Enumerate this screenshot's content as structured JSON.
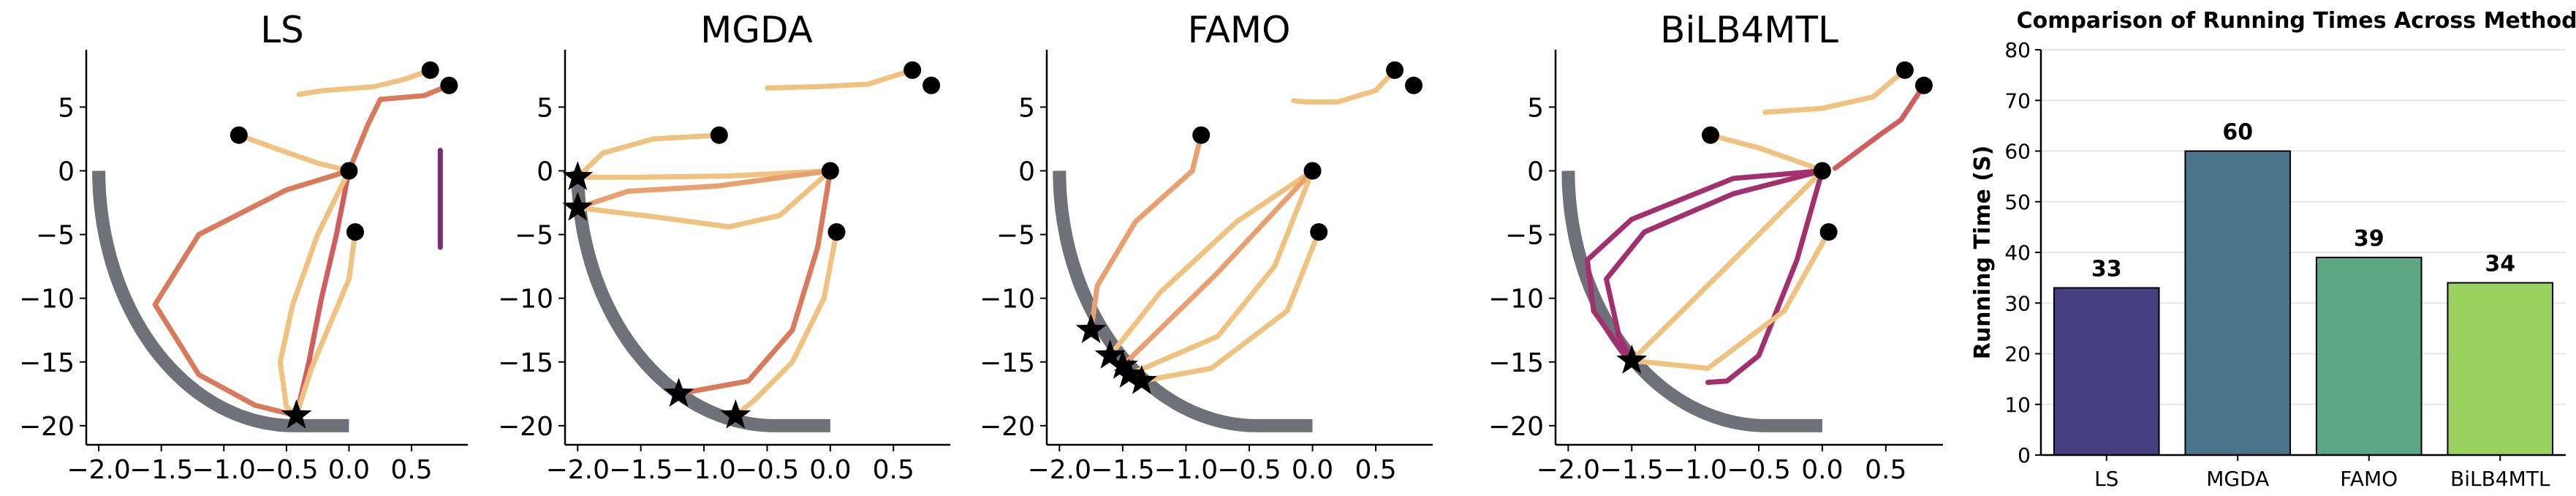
{
  "chart_data": [
    {
      "type": "line",
      "title": "LS",
      "xlim": [
        -2.1,
        0.95
      ],
      "ylim": [
        -21.5,
        9.5
      ],
      "xticks": [
        -2.0,
        -1.5,
        -1.0,
        -0.5,
        0.0,
        0.5
      ],
      "xtick_labels": [
        "−2.0",
        "−1.5",
        "−1.0",
        "−0.5",
        "0.0",
        "0.5"
      ],
      "yticks": [
        5,
        0,
        -5,
        -10,
        -15,
        -20
      ],
      "ytick_labels": [
        "5",
        "0",
        "−5",
        "−10",
        "−15",
        "−20"
      ],
      "start_points": [
        [
          0.65,
          7.9
        ],
        [
          0.8,
          6.7
        ],
        [
          -0.88,
          2.8
        ],
        [
          0.0,
          0.0
        ],
        [
          0.05,
          -4.8
        ]
      ],
      "end_points": [
        [
          -0.42,
          -19.2
        ]
      ],
      "series": [
        {
          "color": "#f0c27f",
          "points": [
            [
              0.65,
              7.9
            ],
            [
              0.45,
              7.2
            ],
            [
              0.2,
              6.6
            ],
            [
              -0.2,
              6.3
            ],
            [
              -0.4,
              6.0
            ]
          ]
        },
        {
          "color": "#d97a5c",
          "points": [
            [
              0.8,
              6.7
            ],
            [
              0.6,
              5.9
            ],
            [
              0.25,
              5.6
            ],
            [
              0.15,
              3.6
            ],
            [
              0.0,
              0.0
            ]
          ]
        },
        {
          "color": "#f0c27f",
          "points": [
            [
              -0.88,
              2.8
            ],
            [
              -0.6,
              1.8
            ],
            [
              -0.25,
              0.6
            ],
            [
              0.0,
              0.0
            ]
          ]
        },
        {
          "color": "#d97a5c",
          "points": [
            [
              0.0,
              0.0
            ],
            [
              -0.5,
              -1.5
            ],
            [
              -1.2,
              -5.0
            ],
            [
              -1.55,
              -10.5
            ],
            [
              -1.2,
              -16.0
            ],
            [
              -0.75,
              -18.4
            ],
            [
              -0.42,
              -19.2
            ]
          ]
        },
        {
          "color": "#d05e5e",
          "points": [
            [
              0.0,
              0.0
            ],
            [
              -0.1,
              -5.0
            ],
            [
              -0.22,
              -10.0
            ],
            [
              -0.32,
              -15.0
            ],
            [
              -0.42,
              -19.2
            ]
          ]
        },
        {
          "color": "#f0c27f",
          "points": [
            [
              0.0,
              0.0
            ],
            [
              -0.25,
              -5.0
            ],
            [
              -0.45,
              -10.5
            ],
            [
              -0.55,
              -15.0
            ],
            [
              -0.5,
              -18.5
            ],
            [
              -0.42,
              -19.2
            ]
          ]
        },
        {
          "color": "#f0c27f",
          "points": [
            [
              0.05,
              -4.8
            ],
            [
              0.0,
              -8.5
            ],
            [
              -0.15,
              -12.0
            ],
            [
              -0.3,
              -15.5
            ],
            [
              -0.42,
              -19.2
            ]
          ]
        },
        {
          "color": "#7b2e6e",
          "points": [
            [
              0.73,
              1.6
            ],
            [
              0.73,
              -2.0
            ],
            [
              0.73,
              -6.0
            ]
          ]
        }
      ]
    },
    {
      "type": "line",
      "title": "MGDA",
      "xlim": [
        -2.1,
        0.95
      ],
      "ylim": [
        -21.5,
        9.5
      ],
      "xticks": [
        -2.0,
        -1.5,
        -1.0,
        -0.5,
        0.0,
        0.5
      ],
      "xtick_labels": [
        "−2.0",
        "−1.5",
        "−1.0",
        "−0.5",
        "0.0",
        "0.5"
      ],
      "yticks": [
        5,
        0,
        -5,
        -10,
        -15,
        -20
      ],
      "ytick_labels": [
        "5",
        "0",
        "−5",
        "−10",
        "−15",
        "−20"
      ],
      "start_points": [
        [
          0.65,
          7.9
        ],
        [
          0.8,
          6.7
        ],
        [
          -0.88,
          2.8
        ],
        [
          0.0,
          0.0
        ],
        [
          0.05,
          -4.8
        ]
      ],
      "end_points": [
        [
          -2.0,
          -0.5
        ],
        [
          -2.0,
          -2.9
        ],
        [
          -1.2,
          -17.5
        ],
        [
          -0.75,
          -19.2
        ]
      ],
      "series": [
        {
          "color": "#f0c27f",
          "points": [
            [
              0.65,
              7.9
            ],
            [
              0.3,
              6.8
            ],
            [
              -0.1,
              6.6
            ],
            [
              -0.5,
              6.5
            ]
          ]
        },
        {
          "color": "#f0c27f",
          "points": [
            [
              -0.88,
              2.8
            ],
            [
              -1.4,
              2.5
            ],
            [
              -1.8,
              1.4
            ],
            [
              -2.0,
              -0.5
            ]
          ]
        },
        {
          "color": "#f0c27f",
          "points": [
            [
              0.0,
              0.0
            ],
            [
              -0.8,
              -0.4
            ],
            [
              -1.5,
              -0.5
            ],
            [
              -2.0,
              -0.5
            ]
          ]
        },
        {
          "color": "#e8a070",
          "points": [
            [
              0.0,
              0.0
            ],
            [
              -0.9,
              -1.2
            ],
            [
              -1.6,
              -1.6
            ],
            [
              -2.0,
              -2.9
            ]
          ]
        },
        {
          "color": "#f0c27f",
          "points": [
            [
              0.0,
              0.0
            ],
            [
              -0.4,
              -3.5
            ],
            [
              -0.8,
              -4.4
            ],
            [
              -1.4,
              -3.6
            ],
            [
              -2.0,
              -2.9
            ]
          ]
        },
        {
          "color": "#d97a5c",
          "points": [
            [
              0.0,
              0.0
            ],
            [
              -0.1,
              -6.0
            ],
            [
              -0.3,
              -12.5
            ],
            [
              -0.65,
              -16.5
            ],
            [
              -1.2,
              -17.5
            ]
          ]
        },
        {
          "color": "#f0c27f",
          "points": [
            [
              0.05,
              -4.8
            ],
            [
              -0.05,
              -10.0
            ],
            [
              -0.3,
              -15.0
            ],
            [
              -0.6,
              -18.0
            ],
            [
              -0.75,
              -19.2
            ]
          ]
        }
      ]
    },
    {
      "type": "line",
      "title": "FAMO",
      "xlim": [
        -2.1,
        0.95
      ],
      "ylim": [
        -21.5,
        9.5
      ],
      "xticks": [
        -2.0,
        -1.5,
        -1.0,
        -0.5,
        0.0,
        0.5
      ],
      "xtick_labels": [
        "−2.0",
        "−1.5",
        "−1.0",
        "−0.5",
        "0.0",
        "0.5"
      ],
      "yticks": [
        5,
        0,
        -5,
        -10,
        -15,
        -20
      ],
      "ytick_labels": [
        "5",
        "0",
        "−5",
        "−10",
        "−15",
        "−20"
      ],
      "start_points": [
        [
          0.65,
          7.9
        ],
        [
          0.8,
          6.7
        ],
        [
          -0.88,
          2.8
        ],
        [
          0.0,
          0.0
        ],
        [
          0.05,
          -4.8
        ]
      ],
      "end_points": [
        [
          -1.75,
          -12.5
        ],
        [
          -1.6,
          -14.5
        ],
        [
          -1.5,
          -15.3
        ],
        [
          -1.45,
          -16.0
        ],
        [
          -1.35,
          -16.5
        ]
      ],
      "series": [
        {
          "color": "#f0c27f",
          "points": [
            [
              0.65,
              7.9
            ],
            [
              0.5,
              6.3
            ],
            [
              0.2,
              5.4
            ],
            [
              -0.05,
              5.4
            ],
            [
              -0.15,
              5.5
            ]
          ]
        },
        {
          "color": "#e8a070",
          "points": [
            [
              -0.88,
              2.8
            ],
            [
              -0.95,
              0.0
            ],
            [
              -1.4,
              -4.0
            ],
            [
              -1.7,
              -9.0
            ],
            [
              -1.75,
              -12.5
            ]
          ]
        },
        {
          "color": "#f0c27f",
          "points": [
            [
              0.0,
              0.0
            ],
            [
              -0.6,
              -4.0
            ],
            [
              -1.2,
              -9.5
            ],
            [
              -1.6,
              -14.5
            ]
          ]
        },
        {
          "color": "#e8a070",
          "points": [
            [
              0.0,
              0.0
            ],
            [
              -0.75,
              -8.0
            ],
            [
              -1.5,
              -15.3
            ]
          ]
        },
        {
          "color": "#f0c27f",
          "points": [
            [
              0.0,
              0.0
            ],
            [
              -0.3,
              -7.5
            ],
            [
              -0.75,
              -13.0
            ],
            [
              -1.45,
              -16.0
            ]
          ]
        },
        {
          "color": "#f0c27f",
          "points": [
            [
              0.05,
              -4.8
            ],
            [
              -0.2,
              -11.0
            ],
            [
              -0.8,
              -15.5
            ],
            [
              -1.35,
              -16.5
            ]
          ]
        }
      ]
    },
    {
      "type": "line",
      "title": "BiLB4MTL",
      "xlim": [
        -2.1,
        0.95
      ],
      "ylim": [
        -21.5,
        9.5
      ],
      "xticks": [
        -2.0,
        -1.5,
        -1.0,
        -0.5,
        0.0,
        0.5
      ],
      "xtick_labels": [
        "−2.0",
        "−1.5",
        "−1.0",
        "−0.5",
        "0.0",
        "0.5"
      ],
      "yticks": [
        5,
        0,
        -5,
        -10,
        -15,
        -20
      ],
      "ytick_labels": [
        "5",
        "0",
        "−5",
        "−10",
        "−15",
        "−20"
      ],
      "start_points": [
        [
          0.65,
          7.9
        ],
        [
          0.8,
          6.7
        ],
        [
          -0.88,
          2.8
        ],
        [
          0.0,
          0.0
        ],
        [
          0.05,
          -4.8
        ]
      ],
      "end_points": [
        [
          -1.5,
          -14.9
        ]
      ],
      "series": [
        {
          "color": "#f0c27f",
          "points": [
            [
              0.65,
              7.9
            ],
            [
              0.4,
              5.8
            ],
            [
              0.0,
              4.9
            ],
            [
              -0.45,
              4.6
            ]
          ]
        },
        {
          "color": "#d05e5e",
          "points": [
            [
              0.8,
              6.7
            ],
            [
              0.62,
              4.0
            ],
            [
              0.45,
              2.8
            ],
            [
              0.1,
              0.2
            ]
          ]
        },
        {
          "color": "#f0c27f",
          "points": [
            [
              -0.88,
              2.8
            ],
            [
              -0.5,
              1.8
            ],
            [
              -0.1,
              0.4
            ],
            [
              0.0,
              0.0
            ]
          ]
        },
        {
          "color": "#a2306c",
          "points": [
            [
              0.0,
              0.0
            ],
            [
              -0.7,
              -1.8
            ],
            [
              -1.4,
              -4.8
            ],
            [
              -1.7,
              -8.5
            ],
            [
              -1.6,
              -13.0
            ],
            [
              -1.5,
              -14.9
            ]
          ]
        },
        {
          "color": "#a2306c",
          "points": [
            [
              0.0,
              0.0
            ],
            [
              -0.7,
              -0.6
            ],
            [
              -1.5,
              -3.8
            ],
            [
              -1.85,
              -7.0
            ],
            [
              -1.8,
              -11.0
            ],
            [
              -1.55,
              -14.5
            ]
          ]
        },
        {
          "color": "#a2306c",
          "points": [
            [
              0.0,
              0.0
            ],
            [
              -0.2,
              -7.0
            ],
            [
              -0.5,
              -14.5
            ],
            [
              -0.75,
              -16.5
            ],
            [
              -0.9,
              -16.6
            ]
          ]
        },
        {
          "color": "#f0c27f",
          "points": [
            [
              0.0,
              0.0
            ],
            [
              -0.75,
              -7.5
            ],
            [
              -1.5,
              -14.9
            ]
          ]
        },
        {
          "color": "#f0c27f",
          "points": [
            [
              0.05,
              -4.8
            ],
            [
              -0.3,
              -11.0
            ],
            [
              -0.9,
              -15.5
            ],
            [
              -1.5,
              -14.9
            ]
          ]
        }
      ]
    },
    {
      "type": "bar",
      "title": "Comparison of Running Times Across Methods",
      "ylabel": "Running Time (S)",
      "categories": [
        "LS",
        "MGDA",
        "FAMO",
        "BiLB4MTL"
      ],
      "values": [
        33,
        60,
        39,
        34
      ],
      "value_labels": [
        "33",
        "60",
        "39",
        "34"
      ],
      "colors": [
        "#463f80",
        "#4a758c",
        "#5ea784",
        "#9ad25f"
      ],
      "ylim": [
        0,
        80
      ],
      "yticks": [
        0,
        10,
        20,
        30,
        40,
        50,
        60,
        70,
        80
      ],
      "ytick_labels": [
        "0",
        "10",
        "20",
        "30",
        "40",
        "50",
        "60",
        "70",
        "80"
      ],
      "grid": true
    }
  ]
}
